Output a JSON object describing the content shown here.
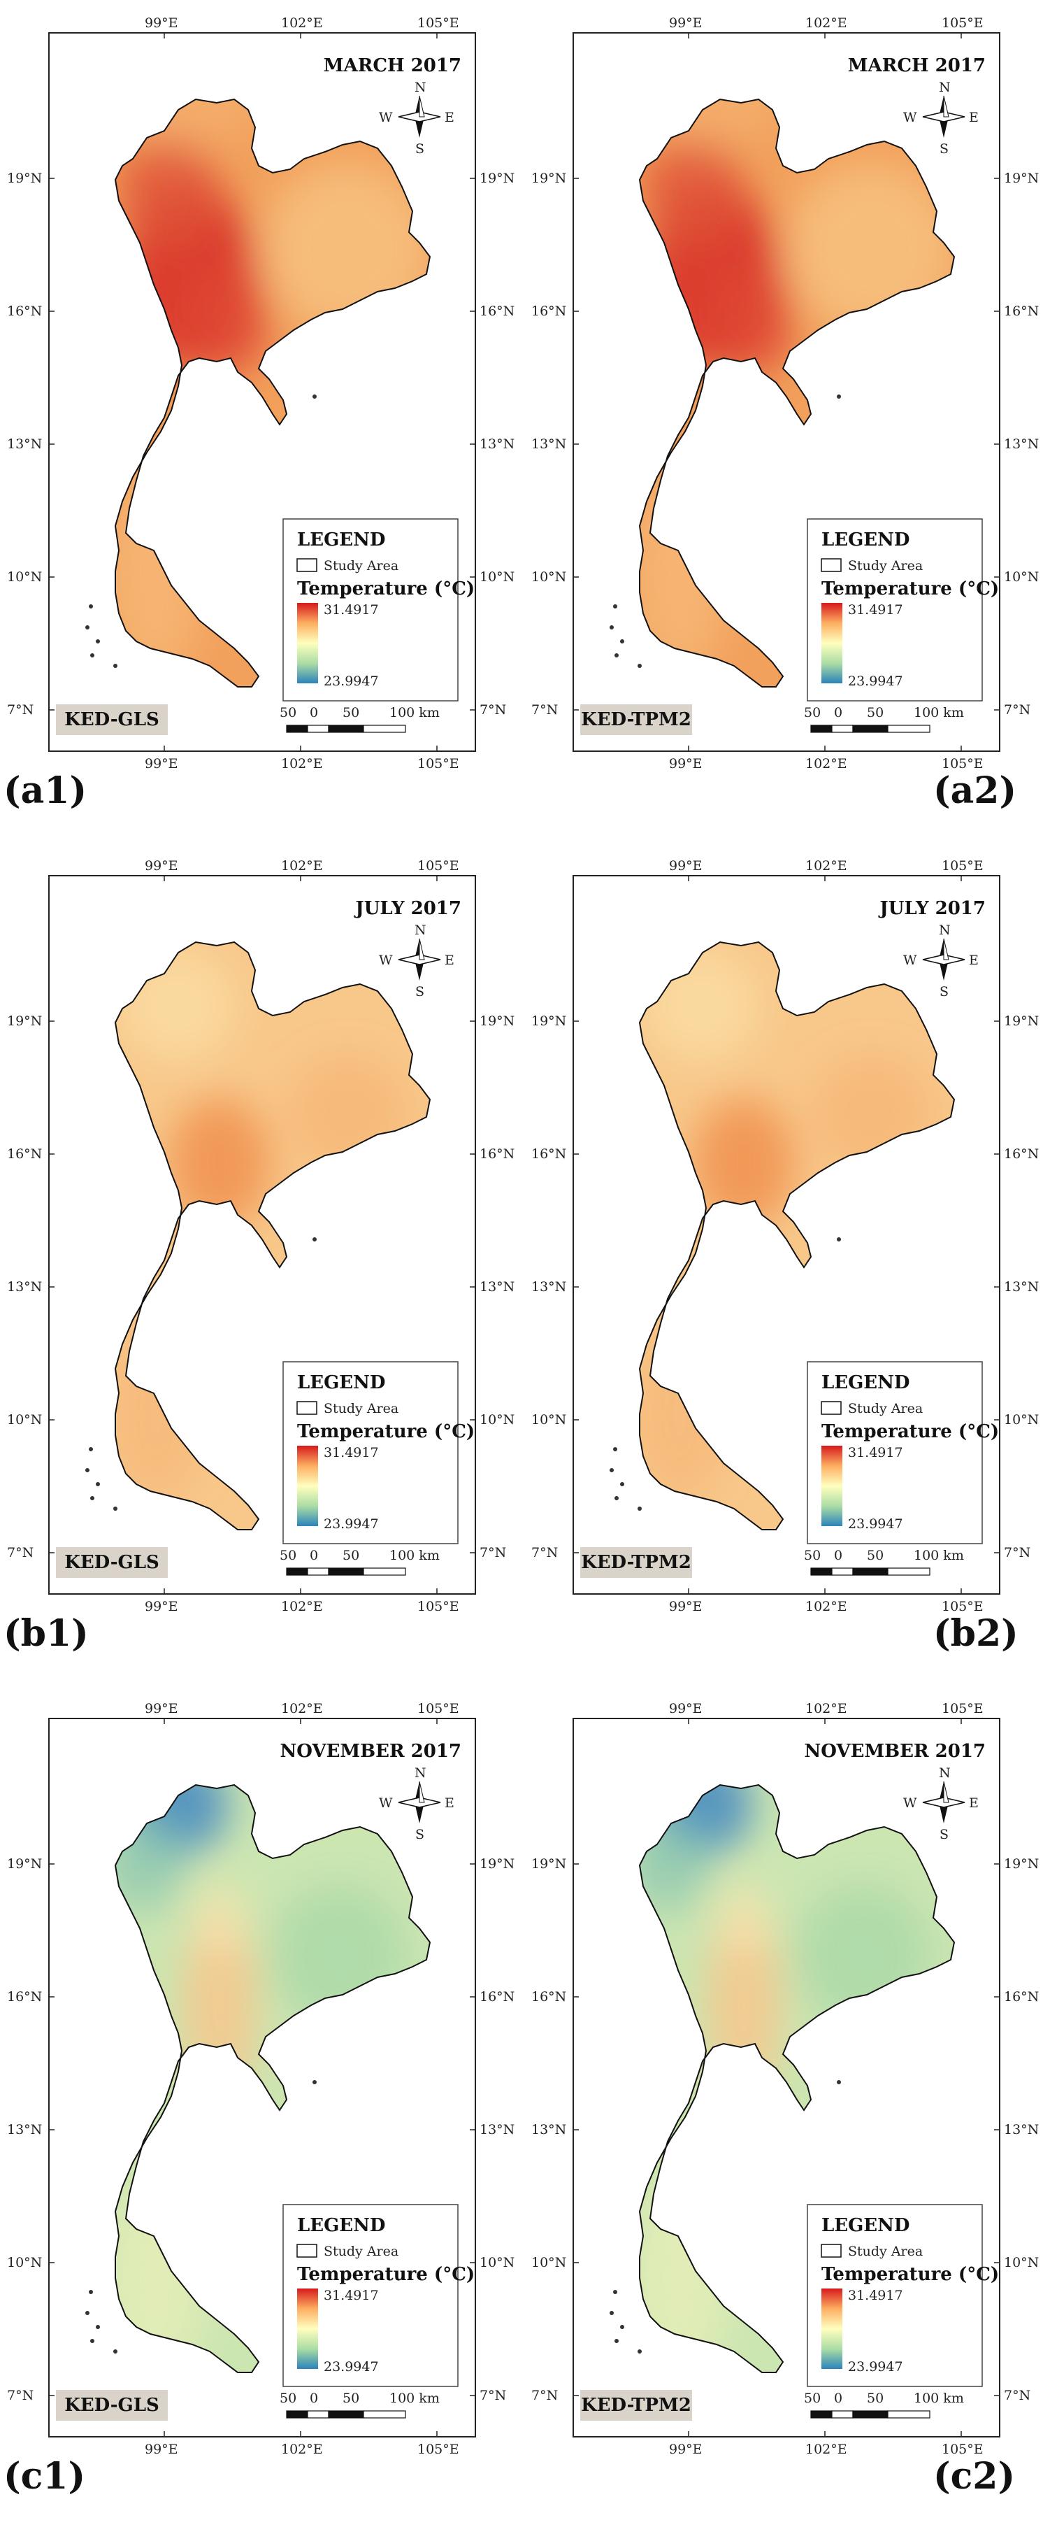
{
  "legend": {
    "title": "LEGEND",
    "study_area": "Study Area",
    "temperature_title": "Temperature (°C)",
    "max": "31.4917",
    "min": "23.9947"
  },
  "scale_bar": {
    "labels": [
      "50",
      "0",
      "50",
      "100 km"
    ]
  },
  "compass": {
    "n": "N",
    "s": "S",
    "e": "E",
    "w": "W"
  },
  "axis": {
    "lon_ticks": [
      "99°E",
      "102°E",
      "105°E"
    ],
    "lat_ticks": [
      "19°N",
      "16°N",
      "13°N",
      "10°N",
      "7°N"
    ]
  },
  "colors": {
    "hot": "#d7191c",
    "warm": "#fdae61",
    "mid": "#ffffbf",
    "cool": "#abdda4",
    "cold": "#2b83ba"
  },
  "panels": [
    {
      "caption": "(a1)",
      "title": "MARCH 2017",
      "method": "KED-GLS",
      "theme": "march"
    },
    {
      "caption": "(a2)",
      "title": "MARCH 2017",
      "method": "KED-TPM2",
      "theme": "march"
    },
    {
      "caption": "(b1)",
      "title": "JULY 2017",
      "method": "KED-GLS",
      "theme": "july"
    },
    {
      "caption": "(b2)",
      "title": "JULY 2017",
      "method": "KED-TPM2",
      "theme": "july"
    },
    {
      "caption": "(c1)",
      "title": "NOVEMBER 2017",
      "method": "KED-GLS",
      "theme": "november"
    },
    {
      "caption": "(c2)",
      "title": "NOVEMBER 2017",
      "method": "KED-TPM2",
      "theme": "november"
    }
  ]
}
